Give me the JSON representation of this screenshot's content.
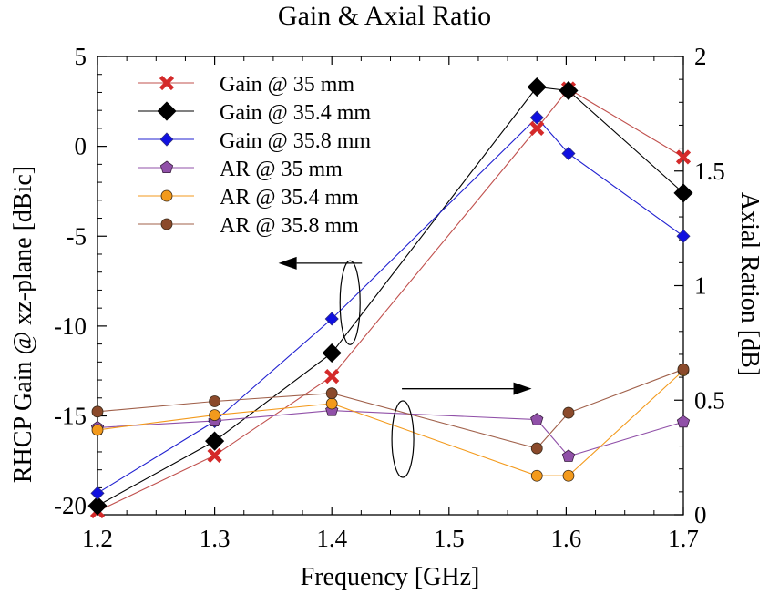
{
  "chart_data": {
    "type": "line",
    "title": "Gain & Axial Ratio",
    "xlabel": "Frequency [GHz]",
    "ylabel": "RHCP Gain @ xz-plane [dBic]",
    "y2label": "Axial Ration [dB]",
    "xlim": [
      1.2,
      1.7
    ],
    "ylim": [
      -20.5,
      5
    ],
    "y2lim": [
      0,
      2
    ],
    "xticks": [
      "1.2",
      "1.3",
      "1.4",
      "1.5",
      "1.6",
      "1.7"
    ],
    "yticks": [
      "5",
      "0",
      "-5",
      "-10",
      "-15",
      "-20"
    ],
    "y2ticks": [
      "2",
      "1.5",
      "1",
      "0.5",
      "0"
    ],
    "legend_position": "top-left",
    "grid": false,
    "series": [
      {
        "name": "Gain @ 35 mm",
        "axis": "left",
        "marker": "x",
        "color": "#d42a2a",
        "line_color": "#c0504d",
        "x": [
          1.2,
          1.3,
          1.4,
          1.575,
          1.602,
          1.7
        ],
        "y": [
          -20.3,
          -17.2,
          -12.8,
          1.0,
          3.2,
          -0.6
        ]
      },
      {
        "name": "Gain @ 35.4 mm",
        "axis": "left",
        "marker": "diamond-large",
        "color": "#000000",
        "line_color": "#000000",
        "x": [
          1.2,
          1.3,
          1.4,
          1.575,
          1.602,
          1.7
        ],
        "y": [
          -20.0,
          -16.4,
          -11.5,
          3.3,
          3.1,
          -2.6
        ]
      },
      {
        "name": "Gain @ 35.8 mm",
        "axis": "left",
        "marker": "diamond",
        "color": "#1010e0",
        "line_color": "#2020d0",
        "x": [
          1.2,
          1.3,
          1.4,
          1.575,
          1.602,
          1.7
        ],
        "y": [
          -19.3,
          -15.3,
          -9.6,
          1.6,
          -0.4,
          -5.0
        ]
      },
      {
        "name": "AR @ 35 mm",
        "axis": "right",
        "marker": "pentagon",
        "color": "#9050a8",
        "line_color": "#9050a8",
        "x": [
          1.2,
          1.3,
          1.4,
          1.575,
          1.602,
          1.7
        ],
        "y": [
          0.38,
          0.41,
          0.455,
          0.415,
          0.255,
          0.405
        ]
      },
      {
        "name": "AR @ 35.4 mm",
        "axis": "right",
        "marker": "circle",
        "color": "#f39a1c",
        "line_color": "#f39a1c",
        "x": [
          1.2,
          1.3,
          1.4,
          1.575,
          1.602,
          1.7
        ],
        "y": [
          0.37,
          0.435,
          0.485,
          0.17,
          0.17,
          0.63
        ]
      },
      {
        "name": "AR @ 35.8 mm",
        "axis": "right",
        "marker": "circle",
        "color": "#8b4a2b",
        "line_color": "#a0604a",
        "x": [
          1.2,
          1.3,
          1.4,
          1.575,
          1.602,
          1.7
        ],
        "y": [
          0.45,
          0.495,
          0.53,
          0.29,
          0.445,
          0.635
        ]
      }
    ],
    "annotations": [
      {
        "type": "arrow",
        "direction": "left",
        "target_axis": "left",
        "label": ""
      },
      {
        "type": "arrow",
        "direction": "right",
        "target_axis": "right",
        "label": ""
      }
    ]
  }
}
